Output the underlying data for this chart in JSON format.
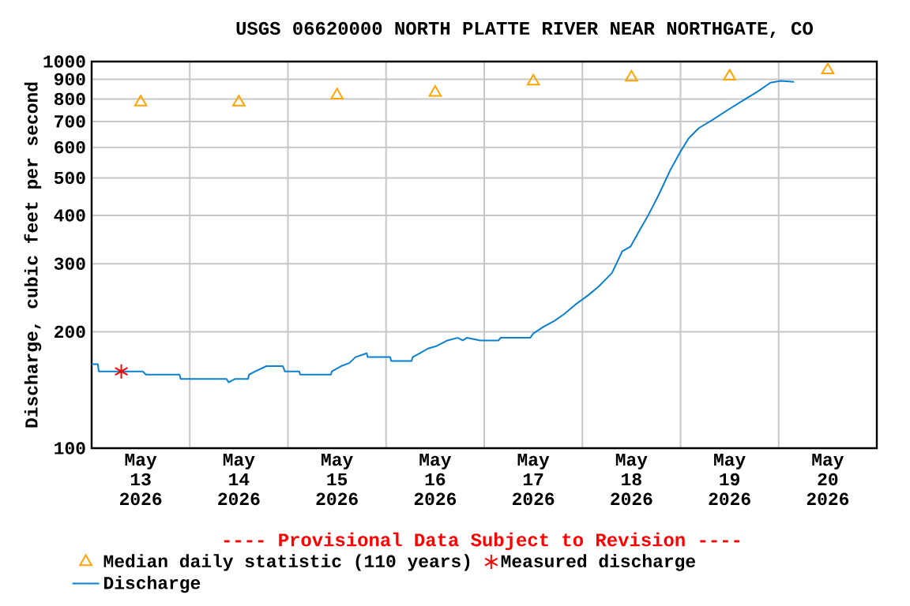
{
  "chart_data": {
    "type": "line",
    "title": "USGS 06620000 NORTH PLATTE RIVER NEAR NORTHGATE, CO",
    "ylabel": "Discharge, cubic feet per second",
    "annotations": [
      "---- Provisional Data Subject to Revision ----"
    ],
    "xlim": [
      "2026-05-13T00:00",
      "2026-05-21T00:00"
    ],
    "xticks": [
      {
        "value": "2026-05-13T12:00",
        "label": "May 13 2026"
      },
      {
        "value": "2026-05-14T12:00",
        "label": "May 14 2026"
      },
      {
        "value": "2026-05-15T12:00",
        "label": "May 15 2026"
      },
      {
        "value": "2026-05-16T12:00",
        "label": "May 16 2026"
      },
      {
        "value": "2026-05-17T12:00",
        "label": "May 17 2026"
      },
      {
        "value": "2026-05-18T12:00",
        "label": "May 18 2026"
      },
      {
        "value": "2026-05-19T12:00",
        "label": "May 19 2026"
      },
      {
        "value": "2026-05-20T12:00",
        "label": "May 20 2026"
      },
      {
        "value": "2026-05-14T00:00",
        "label": null
      },
      {
        "value": "2026-05-15T00:00",
        "label": null
      },
      {
        "value": "2026-05-16T00:00",
        "label": null
      },
      {
        "value": "2026-05-17T00:00",
        "label": null
      },
      {
        "value": "2026-05-18T00:00",
        "label": null
      },
      {
        "value": "2026-05-19T00:00",
        "label": null
      },
      {
        "value": "2026-05-20T00:00",
        "label": null
      }
    ],
    "ylim": [
      100,
      1000
    ],
    "yticks": [
      100,
      200,
      300,
      400,
      500,
      600,
      700,
      800,
      900,
      1000
    ],
    "log": "y",
    "grid": true,
    "legend": "bottom",
    "series": [
      {
        "name": "Median daily statistic (110 years)",
        "type": "scatter",
        "marker": "triangle",
        "color": "#ffa500",
        "x": [
          "2026-05-13T12:00",
          "2026-05-14T12:00",
          "2026-05-15T12:00",
          "2026-05-16T12:00",
          "2026-05-17T12:00",
          "2026-05-18T12:00",
          "2026-05-19T12:00",
          "2026-05-20T12:00"
        ],
        "values": [
          785,
          785,
          818,
          831,
          889,
          910,
          915,
          950
        ]
      },
      {
        "name": "Measured discharge",
        "type": "scatter",
        "marker": "cross",
        "color": "#ff0000",
        "x": [
          "2026-05-13T07:15"
        ],
        "values": [
          158
        ]
      },
      {
        "name": "Discharge",
        "type": "line",
        "marker": "none",
        "color": "#0b7fd0",
        "x": [
          "2026-05-13T00:00",
          "2026-05-13T01:30",
          "2026-05-13T01:45",
          "2026-05-13T12:30",
          "2026-05-13T13:15",
          "2026-05-13T21:30",
          "2026-05-13T21:45",
          "2026-05-14T09:00",
          "2026-05-14T09:30",
          "2026-05-14T11:00",
          "2026-05-14T14:15",
          "2026-05-14T14:30",
          "2026-05-14T16:00",
          "2026-05-14T18:45",
          "2026-05-14T22:45",
          "2026-05-14T23:15",
          "2026-05-15T02:45",
          "2026-05-15T03:00",
          "2026-05-15T10:30",
          "2026-05-15T10:45",
          "2026-05-15T13:00",
          "2026-05-15T15:00",
          "2026-05-15T16:30",
          "2026-05-15T19:15",
          "2026-05-15T19:30",
          "2026-05-16T01:00",
          "2026-05-16T01:15",
          "2026-05-16T06:15",
          "2026-05-16T06:30",
          "2026-05-16T08:15",
          "2026-05-16T10:15",
          "2026-05-16T12:30",
          "2026-05-16T15:00",
          "2026-05-16T17:30",
          "2026-05-16T18:45",
          "2026-05-16T19:45",
          "2026-05-16T23:00",
          "2026-05-17T03:30",
          "2026-05-17T04:00",
          "2026-05-17T11:15",
          "2026-05-17T12:00",
          "2026-05-17T14:30",
          "2026-05-17T17:00",
          "2026-05-17T19:30",
          "2026-05-17T22:15",
          "2026-05-18T01:30",
          "2026-05-18T04:00",
          "2026-05-18T07:15",
          "2026-05-18T09:45",
          "2026-05-18T11:45",
          "2026-05-18T14:15",
          "2026-05-18T16:15",
          "2026-05-18T18:45",
          "2026-05-18T21:30",
          "2026-05-19T00:00",
          "2026-05-19T02:00",
          "2026-05-19T04:30",
          "2026-05-19T07:45",
          "2026-05-19T11:30",
          "2026-05-19T15:30",
          "2026-05-19T18:45",
          "2026-05-19T22:00",
          "2026-05-20T00:30",
          "2026-05-20T03:45"
        ],
        "values": [
          165,
          165,
          158,
          158,
          155,
          155,
          151,
          151,
          148,
          151,
          151,
          155,
          158,
          163,
          163,
          158,
          158,
          155,
          155,
          158,
          163,
          166,
          172,
          176,
          172,
          172,
          168,
          168,
          172,
          176,
          181,
          184,
          190,
          193,
          190,
          193,
          190,
          190,
          193,
          193,
          198,
          206,
          213,
          222,
          235,
          249,
          262,
          284,
          323,
          332,
          370,
          403,
          454,
          524,
          585,
          633,
          673,
          706,
          749,
          796,
          835,
          882,
          891,
          886
        ]
      }
    ]
  }
}
